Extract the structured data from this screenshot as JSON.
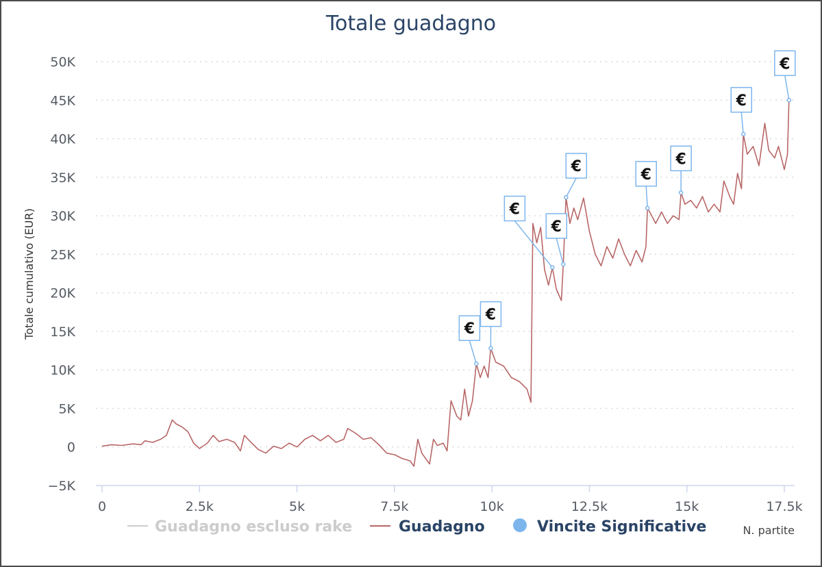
{
  "chart_data": {
    "type": "line",
    "title": "Totale guadagno",
    "xlabel": "N. partite",
    "ylabel": "Totale cumulativo (EUR)",
    "xlim": [
      0,
      17600
    ],
    "ylim": [
      -5000,
      50000
    ],
    "x_ticks": [
      0,
      2500,
      5000,
      7500,
      10000,
      12500,
      15000,
      17500
    ],
    "x_tick_labels": [
      "0",
      "2.5k",
      "5k",
      "7.5k",
      "10k",
      "12.5k",
      "15k",
      "17.5k"
    ],
    "y_ticks": [
      -5000,
      0,
      5000,
      10000,
      15000,
      20000,
      25000,
      30000,
      35000,
      40000,
      45000,
      50000
    ],
    "y_tick_labels": [
      "−5K",
      "0",
      "5K",
      "10K",
      "15K",
      "20K",
      "25K",
      "30K",
      "35K",
      "40K",
      "45K",
      "50K"
    ],
    "grid": "horizontal-dotted",
    "legend_position": "bottom",
    "series": [
      {
        "name": "Guadagno escluso rake",
        "color": "#cccccc",
        "visible": false,
        "points": []
      },
      {
        "name": "Guadagno",
        "color": "#b86666",
        "visible": true,
        "points": [
          [
            0,
            100
          ],
          [
            250,
            300
          ],
          [
            500,
            200
          ],
          [
            800,
            400
          ],
          [
            1000,
            300
          ],
          [
            1100,
            800
          ],
          [
            1300,
            600
          ],
          [
            1500,
            1000
          ],
          [
            1650,
            1500
          ],
          [
            1800,
            3500
          ],
          [
            1900,
            3000
          ],
          [
            2050,
            2600
          ],
          [
            2200,
            2000
          ],
          [
            2350,
            500
          ],
          [
            2500,
            -200
          ],
          [
            2700,
            500
          ],
          [
            2850,
            1500
          ],
          [
            3000,
            700
          ],
          [
            3200,
            1000
          ],
          [
            3400,
            600
          ],
          [
            3550,
            -500
          ],
          [
            3650,
            1500
          ],
          [
            3800,
            700
          ],
          [
            4000,
            -300
          ],
          [
            4200,
            -800
          ],
          [
            4400,
            100
          ],
          [
            4600,
            -200
          ],
          [
            4800,
            500
          ],
          [
            5000,
            0
          ],
          [
            5200,
            1000
          ],
          [
            5400,
            1500
          ],
          [
            5600,
            800
          ],
          [
            5800,
            1500
          ],
          [
            6000,
            600
          ],
          [
            6200,
            1000
          ],
          [
            6300,
            2400
          ],
          [
            6500,
            1800
          ],
          [
            6700,
            1000
          ],
          [
            6900,
            1200
          ],
          [
            7100,
            300
          ],
          [
            7300,
            -800
          ],
          [
            7500,
            -1000
          ],
          [
            7700,
            -1500
          ],
          [
            7900,
            -1800
          ],
          [
            8000,
            -2500
          ],
          [
            8100,
            1000
          ],
          [
            8200,
            -800
          ],
          [
            8400,
            -2200
          ],
          [
            8500,
            1000
          ],
          [
            8600,
            200
          ],
          [
            8750,
            500
          ],
          [
            8850,
            -500
          ],
          [
            8950,
            6000
          ],
          [
            9100,
            4000
          ],
          [
            9200,
            3500
          ],
          [
            9300,
            7500
          ],
          [
            9400,
            4000
          ],
          [
            9500,
            6000
          ],
          [
            9600,
            10800
          ],
          [
            9700,
            9000
          ],
          [
            9800,
            10500
          ],
          [
            9900,
            9000
          ],
          [
            9970,
            12800
          ],
          [
            10100,
            11000
          ],
          [
            10300,
            10500
          ],
          [
            10500,
            9000
          ],
          [
            10700,
            8500
          ],
          [
            10900,
            7500
          ],
          [
            11000,
            5800
          ],
          [
            11050,
            29000
          ],
          [
            11150,
            26500
          ],
          [
            11250,
            28500
          ],
          [
            11350,
            23000
          ],
          [
            11450,
            21000
          ],
          [
            11550,
            23300
          ],
          [
            11650,
            20500
          ],
          [
            11780,
            19000
          ],
          [
            11830,
            23700
          ],
          [
            11900,
            32400
          ],
          [
            12000,
            29000
          ],
          [
            12100,
            31000
          ],
          [
            12200,
            29500
          ],
          [
            12350,
            32300
          ],
          [
            12500,
            28000
          ],
          [
            12650,
            25000
          ],
          [
            12800,
            23500
          ],
          [
            12950,
            26000
          ],
          [
            13100,
            24500
          ],
          [
            13250,
            27000
          ],
          [
            13400,
            25000
          ],
          [
            13550,
            23500
          ],
          [
            13700,
            25500
          ],
          [
            13850,
            24000
          ],
          [
            13950,
            26000
          ],
          [
            13990,
            31000
          ],
          [
            14100,
            30000
          ],
          [
            14200,
            29000
          ],
          [
            14350,
            30500
          ],
          [
            14500,
            29000
          ],
          [
            14650,
            30000
          ],
          [
            14800,
            29500
          ],
          [
            14850,
            33000
          ],
          [
            14950,
            31500
          ],
          [
            15100,
            32000
          ],
          [
            15250,
            31000
          ],
          [
            15400,
            32500
          ],
          [
            15550,
            30500
          ],
          [
            15700,
            31500
          ],
          [
            15850,
            30500
          ],
          [
            15950,
            34500
          ],
          [
            16100,
            32500
          ],
          [
            16200,
            31500
          ],
          [
            16300,
            35500
          ],
          [
            16400,
            33500
          ],
          [
            16450,
            40600
          ],
          [
            16550,
            38000
          ],
          [
            16700,
            39000
          ],
          [
            16850,
            36500
          ],
          [
            17000,
            42000
          ],
          [
            17100,
            38500
          ],
          [
            17250,
            37500
          ],
          [
            17350,
            39000
          ],
          [
            17500,
            36000
          ],
          [
            17580,
            38000
          ],
          [
            17620,
            45000
          ]
        ]
      }
    ],
    "highlights": {
      "name": "Vincite Significative",
      "color": "#7cb5ec",
      "marker": "€",
      "points": [
        [
          9600,
          10800
        ],
        [
          9970,
          12800
        ],
        [
          11550,
          23300
        ],
        [
          11830,
          23700
        ],
        [
          11900,
          32400
        ],
        [
          13990,
          31000
        ],
        [
          14850,
          33000
        ],
        [
          16450,
          40600
        ],
        [
          17620,
          45000
        ]
      ]
    }
  }
}
